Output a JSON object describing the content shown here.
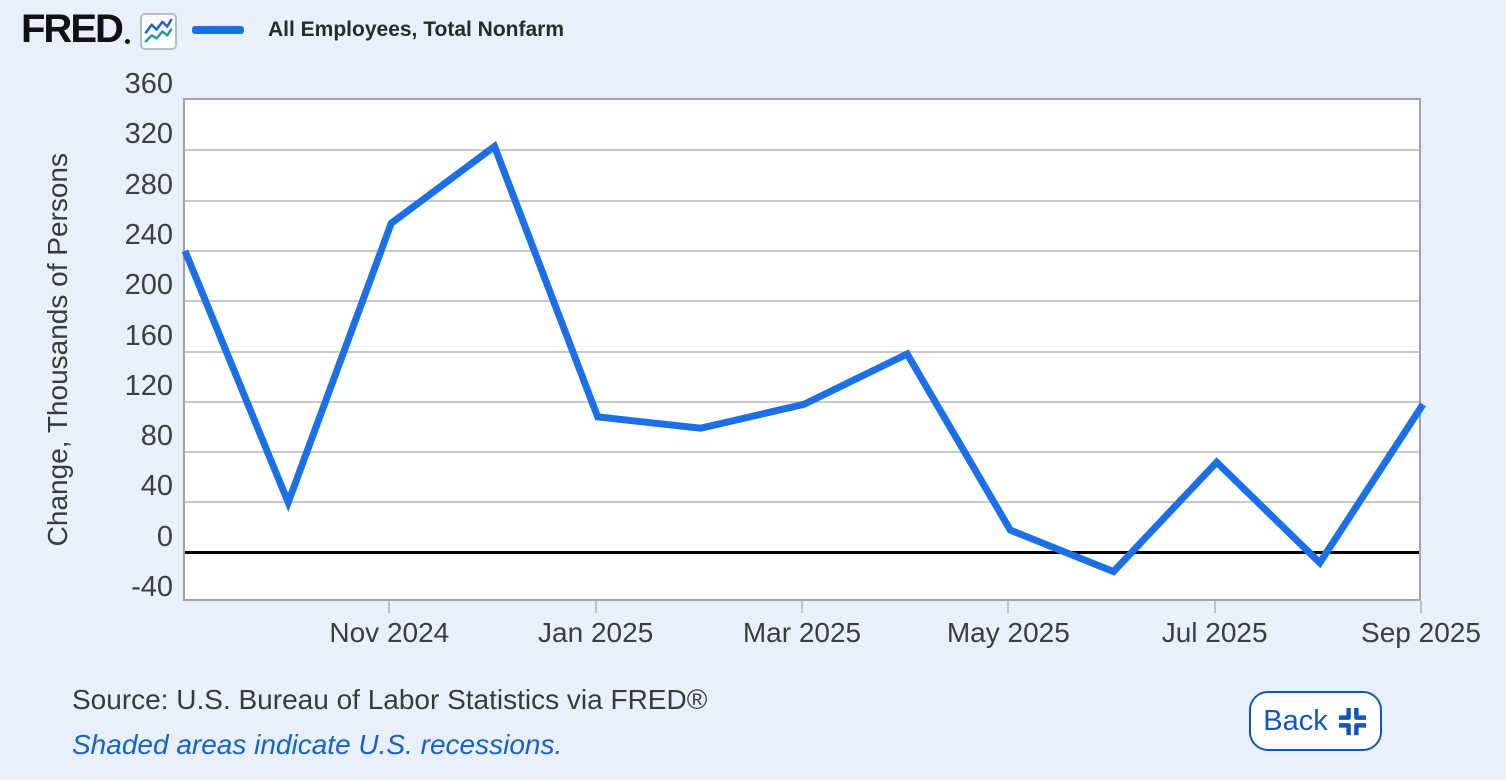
{
  "header": {
    "logo_text": "FRED",
    "legend_label": "All Employees, Total Nonfarm",
    "legend_color": "#1b6fe8"
  },
  "chart_data": {
    "type": "line",
    "title": "All Employees, Total Nonfarm",
    "xlabel": "",
    "ylabel": "Change, Thousands of Persons",
    "x": [
      "Sep 2024",
      "Oct 2024",
      "Nov 2024",
      "Dec 2024",
      "Jan 2025",
      "Feb 2025",
      "Mar 2025",
      "Apr 2025",
      "May 2025",
      "Jun 2025",
      "Jul 2025",
      "Aug 2025",
      "Sep 2025"
    ],
    "values": [
      240,
      40,
      262,
      323,
      108,
      99,
      118,
      158,
      18,
      -15,
      72,
      -8,
      118
    ],
    "series": [
      {
        "name": "All Employees, Total Nonfarm",
        "values": [
          240,
          40,
          262,
          323,
          108,
          99,
          118,
          158,
          18,
          -15,
          72,
          -8,
          118
        ]
      }
    ],
    "x_tick_labels": [
      "Nov 2024",
      "Jan 2025",
      "Mar 2025",
      "May 2025",
      "Jul 2025",
      "Sep 2025"
    ],
    "y_ticks": [
      360,
      320,
      280,
      240,
      200,
      160,
      120,
      80,
      40,
      0,
      -40
    ],
    "ylim": [
      -40,
      360
    ],
    "grid": true,
    "zero_line_at": 0,
    "legend_position": "top-left-header",
    "line_color": "#1b6fe8",
    "line_width": 7
  },
  "footer": {
    "source_text": "Source: U.S. Bureau of Labor Statistics via FRED®",
    "recession_note": "Shaded areas indicate U.S. recessions.",
    "back_button_label": "Back"
  },
  "colors": {
    "background": "#e9f0fb",
    "plot_background": "#ffffff",
    "gridline": "#c8c8c8",
    "plot_border": "#a3a3a3",
    "zero_line": "#000000",
    "tick_text": "#3f3f3f",
    "accent_blue": "#1256bd",
    "note_blue": "#1263cc"
  }
}
